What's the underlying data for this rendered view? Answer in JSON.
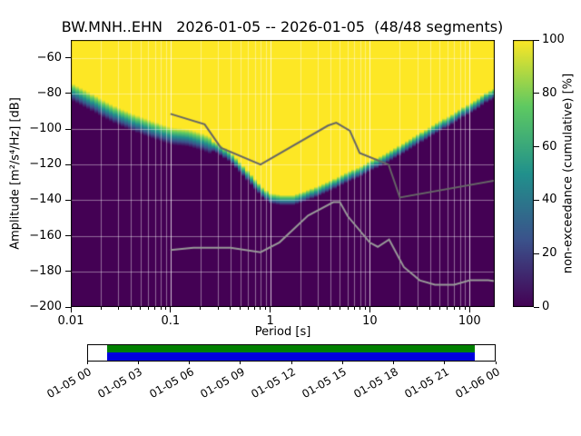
{
  "title": "BW.MNH..EHN   2026-01-05 -- 2026-01-05  (48/48 segments)",
  "station": "BW.MNH..EHN",
  "date_range": "2026-01-05 -- 2026-01-05",
  "segments": "48/48 segments",
  "axes": {
    "xlabel": "Period [s]",
    "ylabel": "Amplitude [m²/s⁴/Hz] [dB]",
    "xticks": [
      "0.01",
      "0.1",
      "1",
      "10",
      "100"
    ],
    "yticks": [
      -60,
      -80,
      -100,
      -120,
      -140,
      -160,
      -180,
      -200
    ]
  },
  "colorbar": {
    "label": "non-exceedance (cumulative) [%]",
    "ticks": [
      0,
      20,
      40,
      60,
      80,
      100
    ],
    "colormap": "viridis",
    "stops": [
      "#440154",
      "#3b528b",
      "#21918c",
      "#5ec962",
      "#fde725"
    ]
  },
  "chart_data": {
    "type": "heatmap",
    "title": "BW.MNH..EHN   2026-01-05 -- 2026-01-05  (48/48 segments)",
    "xlabel": "Period [s]",
    "ylabel": "Amplitude [m²/s⁴/Hz] [dB]",
    "colorbar_label": "non-exceedance (cumulative) [%]",
    "x_scale": "log",
    "xlim": [
      0.01,
      179
    ],
    "ylim": [
      -200,
      -50
    ],
    "colorbar_range": [
      0,
      100
    ],
    "cdf_boundary_db": {
      "description": "period [s] vs amplitude [dB] of the sharp transition where cumulative non-exceedance jumps from 0% (dark purple, below) to 100% (yellow, above)",
      "points": [
        [
          0.01,
          -79
        ],
        [
          0.015,
          -84
        ],
        [
          0.02,
          -88
        ],
        [
          0.03,
          -93
        ],
        [
          0.05,
          -98
        ],
        [
          0.07,
          -101
        ],
        [
          0.1,
          -104
        ],
        [
          0.15,
          -105
        ],
        [
          0.2,
          -107
        ],
        [
          0.3,
          -111
        ],
        [
          0.4,
          -116
        ],
        [
          0.55,
          -124
        ],
        [
          0.7,
          -131
        ],
        [
          0.85,
          -136
        ],
        [
          1.0,
          -139
        ],
        [
          1.3,
          -140
        ],
        [
          1.7,
          -140
        ],
        [
          2.2,
          -138
        ],
        [
          3,
          -135
        ],
        [
          4,
          -132
        ],
        [
          6,
          -127
        ],
        [
          8,
          -124
        ],
        [
          10,
          -121
        ],
        [
          14,
          -117
        ],
        [
          20,
          -112
        ],
        [
          30,
          -106
        ],
        [
          45,
          -100
        ],
        [
          65,
          -95
        ],
        [
          90,
          -90
        ],
        [
          120,
          -86
        ],
        [
          150,
          -82
        ],
        [
          179,
          -80
        ]
      ]
    },
    "transition_width_db": {
      "short_period": 10,
      "long_period": 6,
      "split_period": 0.25
    },
    "noise_models": {
      "colors": {
        "nhnm": "#666666",
        "nlnm": "#999999"
      },
      "nhnm": [
        [
          0.1,
          -91.5
        ],
        [
          0.22,
          -97.4
        ],
        [
          0.32,
          -110.5
        ],
        [
          0.8,
          -120.0
        ],
        [
          3.8,
          -98.1
        ],
        [
          4.6,
          -96.5
        ],
        [
          6.3,
          -101.0
        ],
        [
          7.9,
          -113.5
        ],
        [
          15.4,
          -120.0
        ],
        [
          20.0,
          -138.5
        ],
        [
          354.8,
          -126.0
        ]
      ],
      "nlnm": [
        [
          0.1,
          -168.0
        ],
        [
          0.17,
          -166.7
        ],
        [
          0.4,
          -166.7
        ],
        [
          0.8,
          -169.2
        ],
        [
          1.24,
          -163.7
        ],
        [
          2.4,
          -148.6
        ],
        [
          4.3,
          -141.1
        ],
        [
          5.0,
          -141.1
        ],
        [
          6.0,
          -149.0
        ],
        [
          10.0,
          -163.8
        ],
        [
          12.0,
          -166.2
        ],
        [
          15.6,
          -162.1
        ],
        [
          21.9,
          -177.5
        ],
        [
          31.6,
          -185.0
        ],
        [
          45.0,
          -187.5
        ],
        [
          70.0,
          -187.5
        ],
        [
          101.0,
          -185.0
        ],
        [
          154.0,
          -185.0
        ],
        [
          328.0,
          -187.5
        ]
      ]
    }
  },
  "timeline": {
    "labels": [
      "01-05 00",
      "01-05 03",
      "01-05 06",
      "01-05 09",
      "01-05 12",
      "01-05 15",
      "01-05 18",
      "01-05 21",
      "01-06 00"
    ],
    "coverage": {
      "start_frac": 0.047,
      "end_frac": 0.95
    },
    "colors": {
      "top_bar": "#008000",
      "bottom_bar": "#0000dd"
    }
  }
}
